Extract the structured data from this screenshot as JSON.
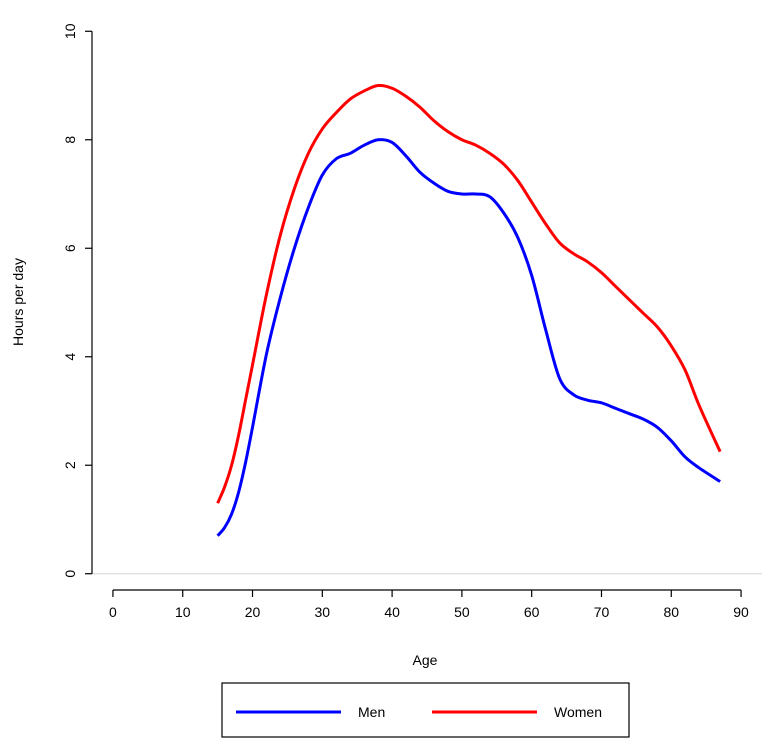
{
  "chart_data": {
    "type": "line",
    "title": "",
    "xlabel": "Age",
    "ylabel": "Hours per day",
    "xlim": [
      -3,
      93
    ],
    "ylim": [
      -0.3,
      10.3
    ],
    "xticks": [
      0,
      10,
      20,
      30,
      40,
      50,
      60,
      70,
      80,
      90
    ],
    "yticks": [
      0,
      2,
      4,
      6,
      8,
      10
    ],
    "xtick_labels": [
      "0",
      "10",
      "20",
      "30",
      "40",
      "50",
      "60",
      "70",
      "80",
      "90"
    ],
    "ytick_labels": [
      "0",
      "2",
      "4",
      "6",
      "8",
      "10"
    ],
    "reference_line_y": 0,
    "grid": false,
    "legend_position": "bottom",
    "series": [
      {
        "name": "Men",
        "color": "#0000ff",
        "x": [
          15,
          16,
          17,
          18,
          19,
          20,
          22,
          24,
          26,
          28,
          30,
          32,
          34,
          36,
          38,
          40,
          42,
          44,
          46,
          48,
          50,
          52,
          54,
          56,
          58,
          60,
          62,
          64,
          66,
          68,
          70,
          72,
          74,
          76,
          78,
          80,
          82,
          84,
          87
        ],
        "y": [
          0.7,
          0.85,
          1.1,
          1.5,
          2.05,
          2.7,
          4.05,
          5.1,
          6.0,
          6.75,
          7.35,
          7.65,
          7.75,
          7.9,
          8.0,
          7.95,
          7.7,
          7.4,
          7.2,
          7.05,
          7.0,
          7.0,
          6.95,
          6.65,
          6.2,
          5.5,
          4.5,
          3.6,
          3.3,
          3.2,
          3.15,
          3.05,
          2.95,
          2.85,
          2.7,
          2.45,
          2.15,
          1.95,
          1.7
        ]
      },
      {
        "name": "Women",
        "color": "#ff0000",
        "x": [
          15,
          16,
          17,
          18,
          19,
          20,
          22,
          24,
          26,
          28,
          30,
          32,
          34,
          36,
          38,
          40,
          42,
          44,
          46,
          48,
          50,
          52,
          54,
          56,
          58,
          60,
          62,
          64,
          66,
          68,
          70,
          72,
          74,
          76,
          78,
          80,
          82,
          84,
          87
        ],
        "y": [
          1.3,
          1.6,
          2.0,
          2.55,
          3.2,
          3.85,
          5.15,
          6.25,
          7.1,
          7.75,
          8.2,
          8.5,
          8.75,
          8.9,
          9.0,
          8.95,
          8.8,
          8.6,
          8.35,
          8.15,
          8.0,
          7.9,
          7.75,
          7.55,
          7.25,
          6.85,
          6.45,
          6.1,
          5.9,
          5.75,
          5.55,
          5.3,
          5.05,
          4.8,
          4.55,
          4.2,
          3.75,
          3.1,
          2.25
        ]
      }
    ]
  }
}
